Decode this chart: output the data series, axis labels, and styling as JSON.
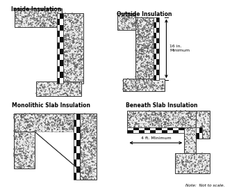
{
  "bg_color": "#ffffff",
  "concrete_color": "#ececec",
  "dot_color": "#555555",
  "ins_dark": "#111111",
  "ins_light": "#ffffff",
  "outline": "#333333",
  "text_color": "#000000",
  "titles": [
    "Inside Insulation",
    "Outside Insulation",
    "Monolithic Slab Insulation",
    "Beneath Slab Insulation"
  ],
  "note": "Note:  Not to scale.",
  "dim_16in": "16 in.\nMinimum",
  "dim_4ft": "4 ft. Minimum"
}
